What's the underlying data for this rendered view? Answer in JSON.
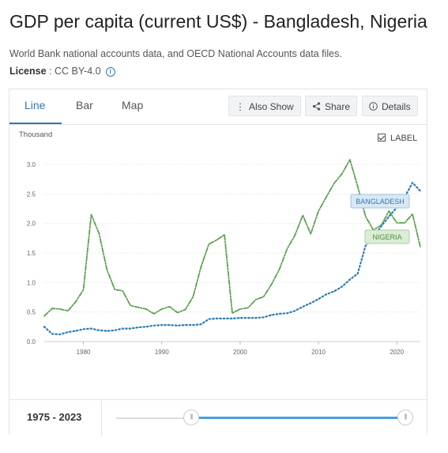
{
  "header": {
    "title": "GDP per capita (current US$) - Bangladesh, Nigeria",
    "source": "World Bank national accounts data, and OECD National Accounts data files.",
    "license_label": "License",
    "license_value": " : CC BY-4.0"
  },
  "tabs": [
    {
      "label": "Line",
      "active": true
    },
    {
      "label": "Bar",
      "active": false
    },
    {
      "label": "Map",
      "active": false
    }
  ],
  "actions": {
    "also_show": "Also Show",
    "share": "Share",
    "details": "Details"
  },
  "label_toggle": {
    "text": "LABEL",
    "checked": true
  },
  "footer": {
    "range_start": "1975",
    "range_sep": " - ",
    "range_end": "2023"
  },
  "colors": {
    "bangladesh": "#2a7ab8",
    "nigeria": "#5aa24f",
    "accent": "#2a7ab8"
  },
  "icons": {
    "also_show": "vertical-dots-icon",
    "share": "share-icon",
    "details": "info-icon"
  },
  "chart_data": {
    "type": "line",
    "title": "GDP per capita (current US$) - Bangladesh, Nigeria",
    "unit_label": "Thousand",
    "xlim": [
      1975,
      2023
    ],
    "ylim": [
      0,
      3.0
    ],
    "x_ticks": [
      1980,
      1990,
      2000,
      2010,
      2020
    ],
    "y_ticks": [
      "0.0",
      "0.5",
      "1.0",
      "1.5",
      "2.0",
      "2.5",
      "3.0"
    ],
    "grid": true,
    "x": [
      1975,
      1976,
      1977,
      1978,
      1979,
      1980,
      1981,
      1982,
      1983,
      1984,
      1985,
      1986,
      1987,
      1988,
      1989,
      1990,
      1991,
      1992,
      1993,
      1994,
      1995,
      1996,
      1997,
      1998,
      1999,
      2000,
      2001,
      2002,
      2003,
      2004,
      2005,
      2006,
      2007,
      2008,
      2009,
      2010,
      2011,
      2012,
      2013,
      2014,
      2015,
      2016,
      2017,
      2018,
      2019,
      2020,
      2021,
      2022,
      2023
    ],
    "series": [
      {
        "name": "BANGLADESH",
        "values": [
          0.25,
          0.13,
          0.12,
          0.16,
          0.18,
          0.21,
          0.22,
          0.19,
          0.18,
          0.19,
          0.22,
          0.22,
          0.24,
          0.25,
          0.27,
          0.28,
          0.28,
          0.27,
          0.28,
          0.28,
          0.29,
          0.38,
          0.39,
          0.39,
          0.39,
          0.4,
          0.4,
          0.4,
          0.41,
          0.45,
          0.47,
          0.48,
          0.52,
          0.59,
          0.65,
          0.72,
          0.8,
          0.85,
          0.93,
          1.05,
          1.15,
          1.62,
          1.77,
          1.95,
          2.12,
          2.27,
          2.45,
          2.69,
          2.55
        ]
      },
      {
        "name": "NIGERIA",
        "values": [
          0.43,
          0.56,
          0.55,
          0.52,
          0.67,
          0.88,
          2.15,
          1.83,
          1.22,
          0.88,
          0.86,
          0.61,
          0.58,
          0.55,
          0.47,
          0.55,
          0.59,
          0.49,
          0.54,
          0.76,
          1.26,
          1.65,
          1.72,
          1.81,
          0.48,
          0.55,
          0.57,
          0.71,
          0.76,
          0.97,
          1.22,
          1.57,
          1.8,
          2.14,
          1.82,
          2.21,
          2.45,
          2.68,
          2.84,
          3.08,
          2.63,
          2.12,
          1.89,
          1.97,
          2.21,
          2.01,
          2.01,
          2.16,
          1.6
        ]
      }
    ],
    "end_labels": [
      "BANGLADESH",
      "NIGERIA"
    ]
  }
}
